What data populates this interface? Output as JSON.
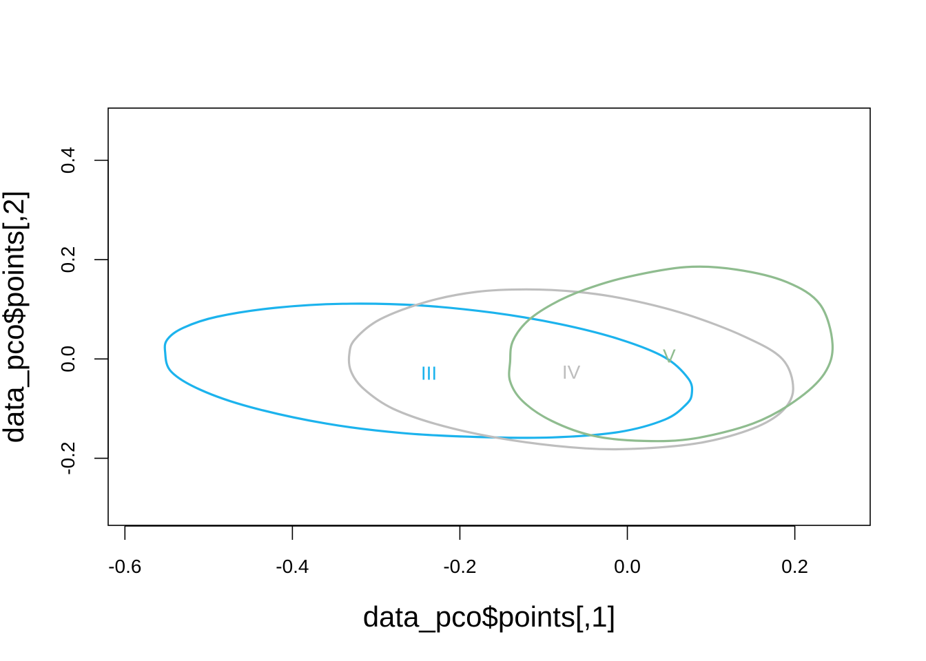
{
  "chart_data": {
    "type": "scatter",
    "title": "",
    "xlabel": "data_pco$points[,1]",
    "ylabel": "data_pco$points[,2]",
    "xlim": [
      -0.62,
      0.29
    ],
    "ylim": [
      -0.335,
      0.505
    ],
    "x_ticks": [
      -0.6,
      -0.4,
      -0.2,
      0.0,
      0.2
    ],
    "x_tick_labels": [
      "-0.6",
      "-0.4",
      "-0.2",
      "0.0",
      "0.2"
    ],
    "y_ticks": [
      -0.2,
      0.0,
      0.2,
      0.4
    ],
    "y_tick_labels": [
      "-0.2",
      "0.0",
      "0.2",
      "0.4"
    ],
    "grid": false,
    "legend": "none",
    "groups": [
      {
        "label": "III",
        "color": "#1cb3ed",
        "label_position": [
          -0.237,
          -0.028
        ],
        "outline": [
          [
            -0.552,
            0.015
          ],
          [
            -0.549,
            0.04
          ],
          [
            -0.53,
            0.063
          ],
          [
            -0.49,
            0.085
          ],
          [
            -0.42,
            0.103
          ],
          [
            -0.34,
            0.111
          ],
          [
            -0.25,
            0.108
          ],
          [
            -0.16,
            0.093
          ],
          [
            -0.08,
            0.07
          ],
          [
            -0.01,
            0.04
          ],
          [
            0.045,
            0.003
          ],
          [
            0.073,
            -0.04
          ],
          [
            0.077,
            -0.07
          ],
          [
            0.07,
            -0.092
          ],
          [
            0.045,
            -0.122
          ],
          [
            -0.01,
            -0.147
          ],
          [
            -0.09,
            -0.158
          ],
          [
            -0.18,
            -0.157
          ],
          [
            -0.27,
            -0.149
          ],
          [
            -0.36,
            -0.13
          ],
          [
            -0.45,
            -0.097
          ],
          [
            -0.51,
            -0.062
          ],
          [
            -0.545,
            -0.025
          ]
        ]
      },
      {
        "label": "IV",
        "color": "#bebebe",
        "label_position": [
          -0.067,
          -0.026
        ],
        "outline": [
          [
            -0.332,
            0.01
          ],
          [
            -0.325,
            0.04
          ],
          [
            -0.295,
            0.08
          ],
          [
            -0.24,
            0.115
          ],
          [
            -0.18,
            0.135
          ],
          [
            -0.12,
            0.14
          ],
          [
            -0.06,
            0.135
          ],
          [
            0.0,
            0.12
          ],
          [
            0.07,
            0.09
          ],
          [
            0.14,
            0.045
          ],
          [
            0.185,
            0.0
          ],
          [
            0.198,
            -0.06
          ],
          [
            0.185,
            -0.105
          ],
          [
            0.15,
            -0.14
          ],
          [
            0.09,
            -0.168
          ],
          [
            0.02,
            -0.18
          ],
          [
            -0.05,
            -0.18
          ],
          [
            -0.14,
            -0.163
          ],
          [
            -0.22,
            -0.135
          ],
          [
            -0.28,
            -0.1
          ],
          [
            -0.315,
            -0.06
          ],
          [
            -0.33,
            -0.025
          ]
        ]
      },
      {
        "label": "V",
        "color": "#8fbc8f",
        "label_position": [
          0.05,
          0.007
        ],
        "outline": [
          [
            -0.14,
            -0.005
          ],
          [
            -0.137,
            0.035
          ],
          [
            -0.12,
            0.075
          ],
          [
            -0.09,
            0.11
          ],
          [
            -0.05,
            0.14
          ],
          [
            0.0,
            0.165
          ],
          [
            0.07,
            0.185
          ],
          [
            0.13,
            0.18
          ],
          [
            0.19,
            0.155
          ],
          [
            0.23,
            0.11
          ],
          [
            0.245,
            0.03
          ],
          [
            0.235,
            -0.03
          ],
          [
            0.2,
            -0.085
          ],
          [
            0.15,
            -0.13
          ],
          [
            0.08,
            -0.16
          ],
          [
            0.02,
            -0.165
          ],
          [
            -0.04,
            -0.155
          ],
          [
            -0.09,
            -0.125
          ],
          [
            -0.125,
            -0.085
          ],
          [
            -0.14,
            -0.045
          ]
        ]
      }
    ]
  }
}
